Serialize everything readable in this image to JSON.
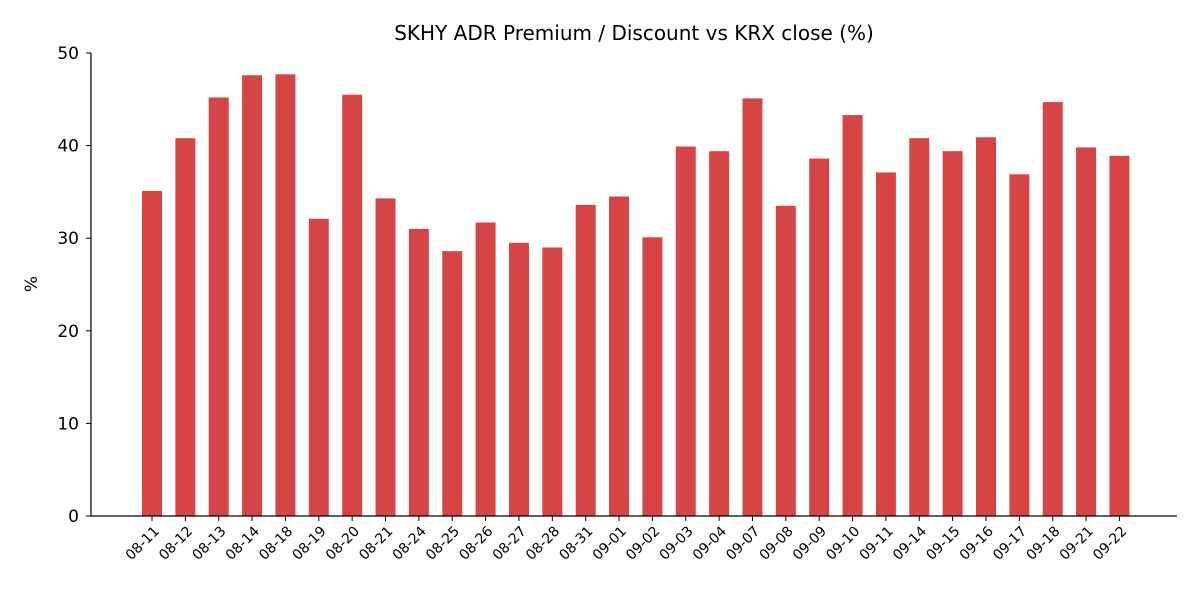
{
  "chart_data": {
    "type": "bar",
    "title": "SKHY ADR Premium / Discount vs KRX close (%)",
    "xlabel": "",
    "ylabel": "%",
    "ylim": [
      0,
      50
    ],
    "yticks": [
      0,
      10,
      20,
      30,
      40,
      50
    ],
    "grid": false,
    "legend": "none",
    "bar_color": "#d64545",
    "categories": [
      "08-11",
      "08-12",
      "08-13",
      "08-14",
      "08-18",
      "08-19",
      "08-20",
      "08-21",
      "08-24",
      "08-25",
      "08-26",
      "08-27",
      "08-28",
      "08-31",
      "09-01",
      "09-02",
      "09-03",
      "09-04",
      "09-07",
      "09-08",
      "09-09",
      "09-10",
      "09-11",
      "09-14",
      "09-15",
      "09-16",
      "09-17",
      "09-18",
      "09-21",
      "09-22"
    ],
    "values": [
      35.1,
      40.8,
      45.2,
      47.6,
      47.7,
      32.1,
      45.5,
      34.3,
      31.0,
      28.6,
      31.7,
      29.5,
      29.0,
      33.6,
      34.5,
      30.1,
      39.9,
      39.4,
      45.1,
      33.5,
      38.6,
      43.3,
      37.1,
      40.8,
      39.4,
      40.9,
      36.9,
      44.7,
      39.8,
      38.9
    ]
  }
}
